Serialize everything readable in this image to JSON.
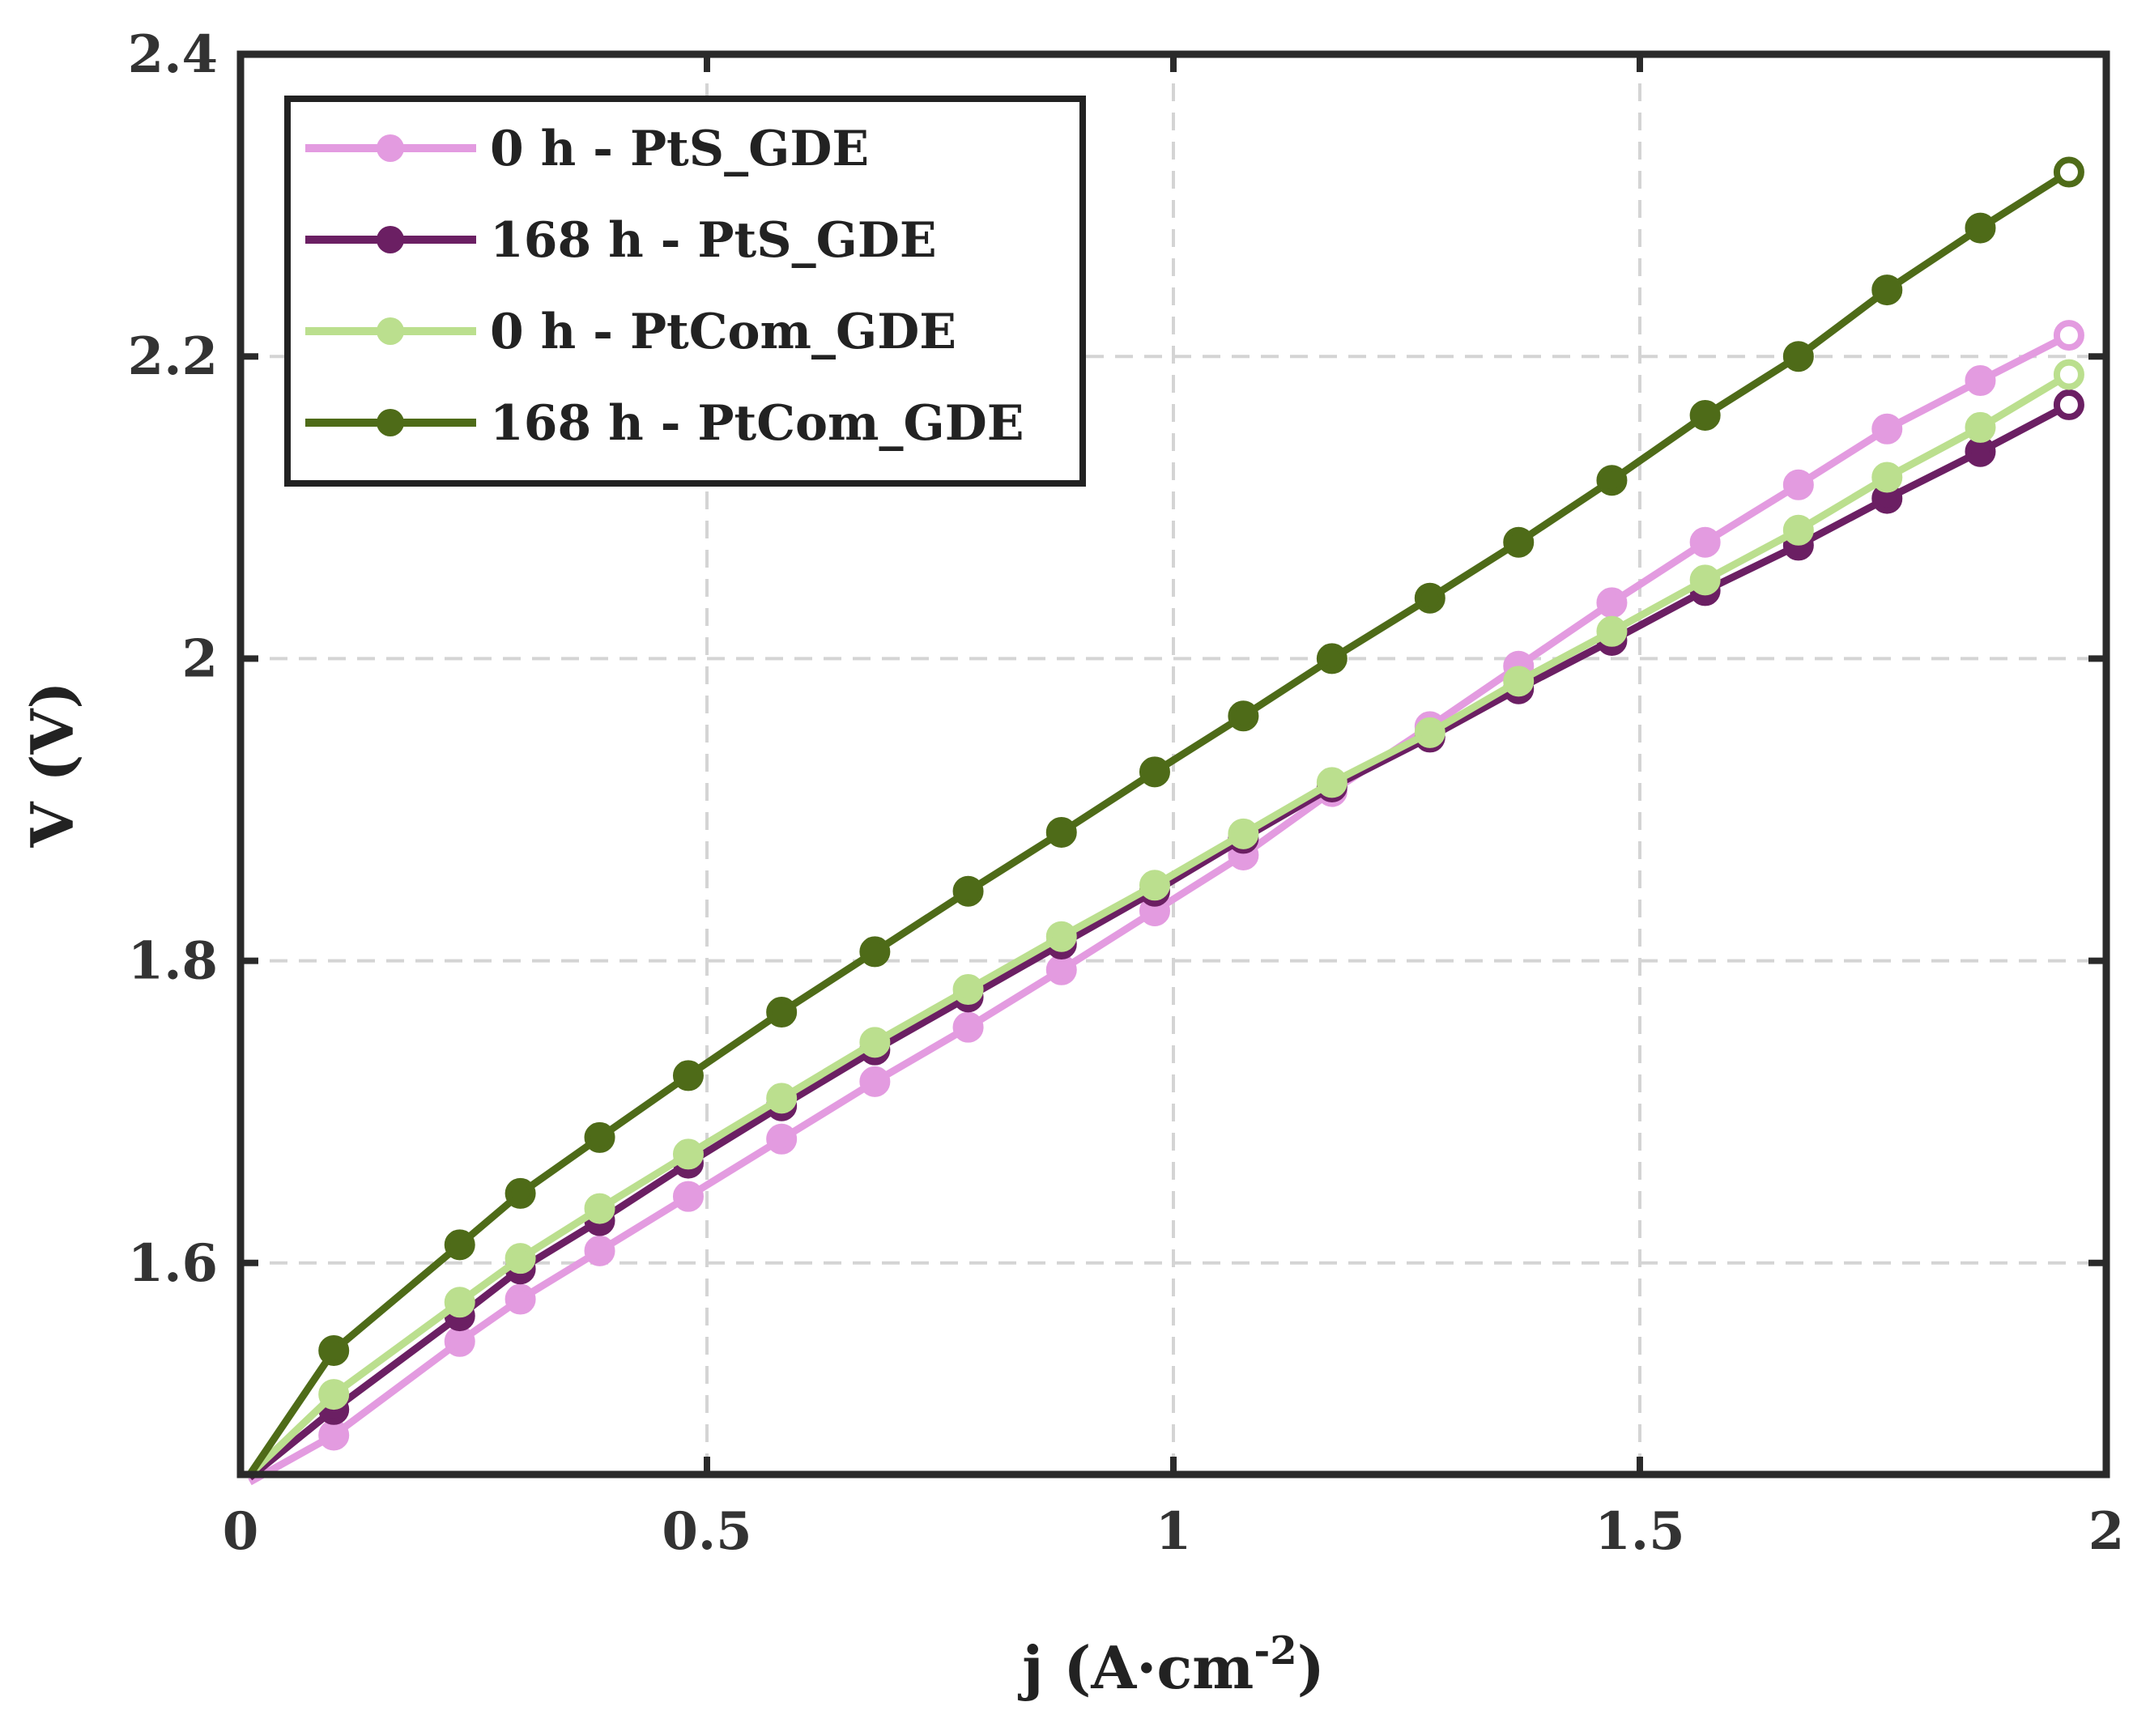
{
  "chart_data": {
    "type": "line",
    "title": "",
    "xlabel_main": "j (A·cm",
    "xlabel_sup": "-2",
    "xlabel_end": ")",
    "ylabel": "V (V)",
    "xlim": [
      0,
      2
    ],
    "ylim": [
      1.46,
      2.4
    ],
    "xticks": [
      0,
      0.5,
      1,
      1.5,
      2
    ],
    "xtick_labels": [
      "0",
      "0.5",
      "1",
      "1.5",
      "2"
    ],
    "yticks": [
      1.6,
      1.8,
      2.0,
      2.2,
      2.4
    ],
    "ytick_labels": [
      "1.6",
      "1.8",
      "2",
      "2.2",
      "2.4"
    ],
    "grid": true,
    "legend_position": "top-left",
    "x": [
      0.01,
      0.1,
      0.235,
      0.3,
      0.385,
      0.48,
      0.58,
      0.68,
      0.78,
      0.88,
      0.98,
      1.075,
      1.17,
      1.275,
      1.37,
      1.47,
      1.57,
      1.67,
      1.765,
      1.865,
      1.96
    ],
    "series": [
      {
        "name": "0 h - PtS_GDE",
        "color": "#E39BE0",
        "values": [
          1.455,
          1.486,
          1.548,
          1.576,
          1.608,
          1.644,
          1.682,
          1.72,
          1.756,
          1.794,
          1.833,
          1.87,
          1.912,
          1.955,
          1.995,
          2.037,
          2.077,
          2.115,
          2.152,
          2.184,
          2.214
        ]
      },
      {
        "name": "168 h - PtS_GDE",
        "color": "#6B1F63",
        "values": [
          1.458,
          1.503,
          1.565,
          1.596,
          1.628,
          1.666,
          1.704,
          1.741,
          1.776,
          1.811,
          1.846,
          1.881,
          1.915,
          1.948,
          1.98,
          2.012,
          2.045,
          2.075,
          2.106,
          2.137,
          2.168
        ]
      },
      {
        "name": "0 h - PtCom_GDE",
        "color": "#BBDF8E",
        "values": [
          1.46,
          1.513,
          1.574,
          1.603,
          1.636,
          1.672,
          1.709,
          1.746,
          1.781,
          1.816,
          1.85,
          1.884,
          1.918,
          1.951,
          1.985,
          2.018,
          2.052,
          2.085,
          2.12,
          2.153,
          2.188
        ]
      },
      {
        "name": "168 h - PtCom_GDE",
        "color": "#4E6B18",
        "values": [
          1.46,
          1.542,
          1.612,
          1.646,
          1.683,
          1.724,
          1.766,
          1.806,
          1.846,
          1.885,
          1.925,
          1.962,
          2.0,
          2.04,
          2.077,
          2.118,
          2.161,
          2.2,
          2.244,
          2.285,
          2.322
        ]
      }
    ]
  }
}
